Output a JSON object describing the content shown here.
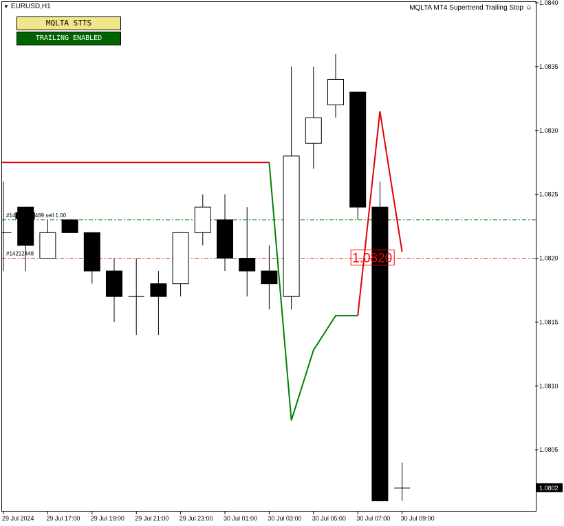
{
  "header": {
    "symbol_label": "EURUSD,H1",
    "indicator_name": "MQLTA MT4 Supertrend Trailing Stop"
  },
  "panel": {
    "title_button": "MQLTA STTS",
    "status_button": "TRAILING ENABLED"
  },
  "colors": {
    "bull_body": "#ffffff",
    "bear_body": "#000000",
    "supertrend_up": "#008000",
    "supertrend_down": "#e00000",
    "buy_line": "#008000",
    "sell_line": "#cc3300",
    "price_box": "#ff0000"
  },
  "chart_data": {
    "type": "candlestick",
    "symbol": "EURUSD",
    "timeframe": "H1",
    "ylim": [
      1.08,
      1.084
    ],
    "y_ticks": [
      "1.0840",
      "1.0835",
      "1.0830",
      "1.0825",
      "1.0820",
      "1.0815",
      "1.0810",
      "1.0805"
    ],
    "x_ticks": [
      "29 Jul 2024",
      "29 Jul 17:00",
      "29 Jul 19:00",
      "29 Jul 21:00",
      "29 Jul 23:00",
      "30 Jul 01:00",
      "30 Jul 03:00",
      "30 Jul 05:00",
      "30 Jul 07:00",
      "30 Jul 09:00"
    ],
    "current_price_label": "1.0802",
    "candles": [
      {
        "o": 1.0822,
        "h": 1.0826,
        "l": 1.0819,
        "c": 1.0822
      },
      {
        "o": 1.0824,
        "h": 1.0824,
        "l": 1.0819,
        "c": 1.0821
      },
      {
        "o": 1.082,
        "h": 1.0823,
        "l": 1.082,
        "c": 1.0822
      },
      {
        "o": 1.0823,
        "h": 1.0823,
        "l": 1.0822,
        "c": 1.0822
      },
      {
        "o": 1.0822,
        "h": 1.0822,
        "l": 1.0818,
        "c": 1.0819
      },
      {
        "o": 1.0819,
        "h": 1.082,
        "l": 1.0815,
        "c": 1.0817
      },
      {
        "o": 1.0817,
        "h": 1.082,
        "l": 1.0814,
        "c": 1.0817
      },
      {
        "o": 1.0818,
        "h": 1.0819,
        "l": 1.0814,
        "c": 1.0817
      },
      {
        "o": 1.0818,
        "h": 1.0822,
        "l": 1.0817,
        "c": 1.0822
      },
      {
        "o": 1.0822,
        "h": 1.0825,
        "l": 1.0821,
        "c": 1.0824
      },
      {
        "o": 1.0823,
        "h": 1.0825,
        "l": 1.0819,
        "c": 1.082
      },
      {
        "o": 1.082,
        "h": 1.0824,
        "l": 1.0817,
        "c": 1.0819
      },
      {
        "o": 1.0819,
        "h": 1.0821,
        "l": 1.0816,
        "c": 1.0818
      },
      {
        "o": 1.0817,
        "h": 1.0835,
        "l": 1.0816,
        "c": 1.0828
      },
      {
        "o": 1.0829,
        "h": 1.0835,
        "l": 1.0827,
        "c": 1.0831
      },
      {
        "o": 1.0832,
        "h": 1.0836,
        "l": 1.0831,
        "c": 1.0834
      },
      {
        "o": 1.0833,
        "h": 1.0833,
        "l": 1.0823,
        "c": 1.0824
      },
      {
        "o": 1.0824,
        "h": 1.0826,
        "l": 1.0801,
        "c": 1.0801
      },
      {
        "o": 1.0802,
        "h": 1.0804,
        "l": 1.0801,
        "c": 1.0802
      }
    ],
    "supertrend_down": [
      {
        "i": -12,
        "v": 1.08275
      },
      {
        "i": 12,
        "v": 1.08275
      }
    ],
    "supertrend_up": [
      {
        "i": 12,
        "v": 1.08275
      },
      {
        "i": 13,
        "v": 1.08073
      },
      {
        "i": 14,
        "v": 1.08128
      },
      {
        "i": 15,
        "v": 1.08155
      },
      {
        "i": 16,
        "v": 1.08155
      }
    ],
    "supertrend_red_tail": [
      {
        "i": 16,
        "v": 1.08155
      },
      {
        "i": 17,
        "v": 1.08315
      },
      {
        "i": 18,
        "v": 1.08205
      }
    ],
    "order_lines": [
      {
        "label": "#14█████489 sell 1.00",
        "price": 1.0823,
        "style": "buy"
      },
      {
        "label": "#14212448",
        "price": 1.082,
        "style": "sell"
      }
    ],
    "trailing_stop_label": "1.0820",
    "trailing_stop_price": 1.082
  }
}
